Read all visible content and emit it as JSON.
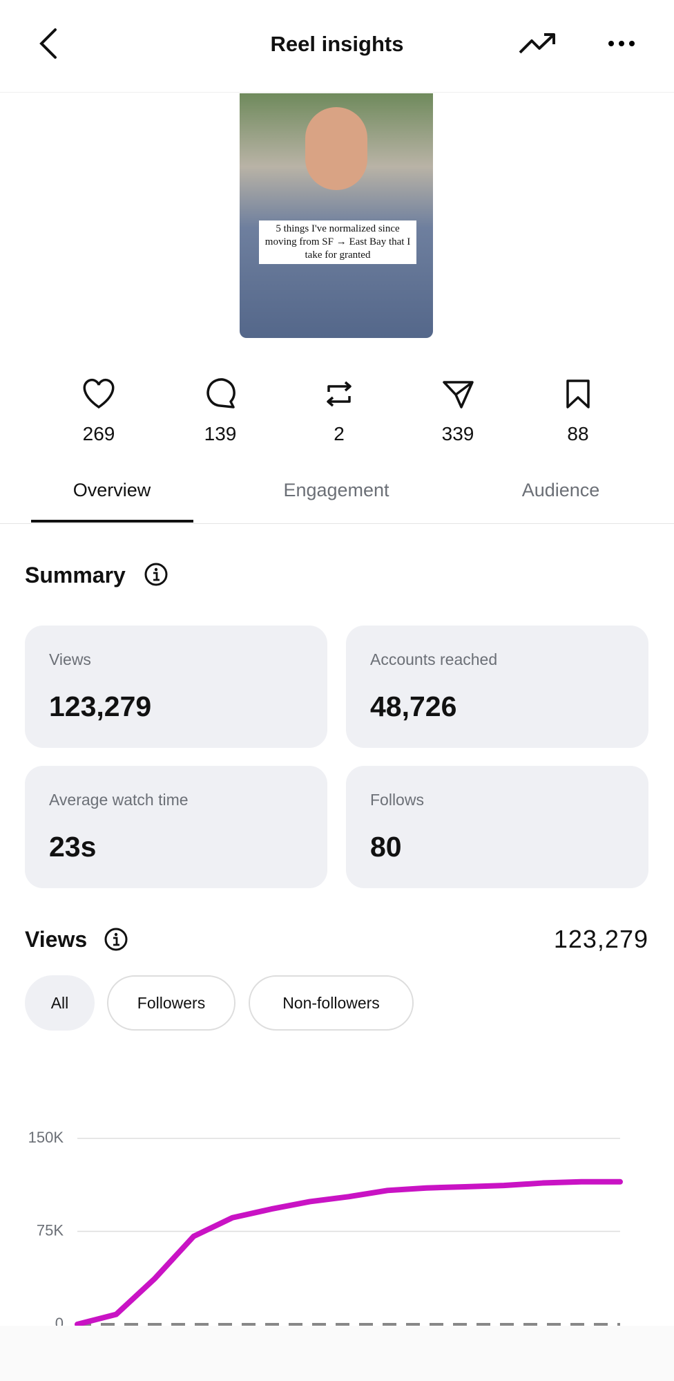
{
  "header": {
    "title": "Reel insights"
  },
  "reel": {
    "caption": "5 things I've normalized since moving from SF → East Bay that I take for granted"
  },
  "stats": [
    269,
    139,
    2,
    339,
    88
  ],
  "tabs": [
    "Overview",
    "Engagement",
    "Audience"
  ],
  "summary": {
    "title": "Summary",
    "cards": [
      {
        "label": "Views",
        "value": "123,279"
      },
      {
        "label": "Accounts reached",
        "value": "48,726"
      },
      {
        "label": "Average watch time",
        "value": "23s"
      },
      {
        "label": "Follows",
        "value": "80"
      }
    ]
  },
  "views": {
    "title": "Views",
    "total": "123,279",
    "filters": [
      "All",
      "Followers",
      "Non-followers"
    ]
  },
  "chart_data": {
    "type": "line",
    "series": [
      {
        "color": "#c913c4",
        "values": [
          0,
          8000,
          37000,
          71000,
          86000,
          93000,
          99000,
          103000,
          108000,
          110000,
          111000,
          112000,
          114000,
          115000,
          115000
        ]
      }
    ],
    "ylim": [
      0,
      150000
    ],
    "yticks": [
      0,
      {
        "value": 75000,
        "label": "75K"
      },
      {
        "value": 150000,
        "label": "150K"
      }
    ],
    "grid": true
  }
}
